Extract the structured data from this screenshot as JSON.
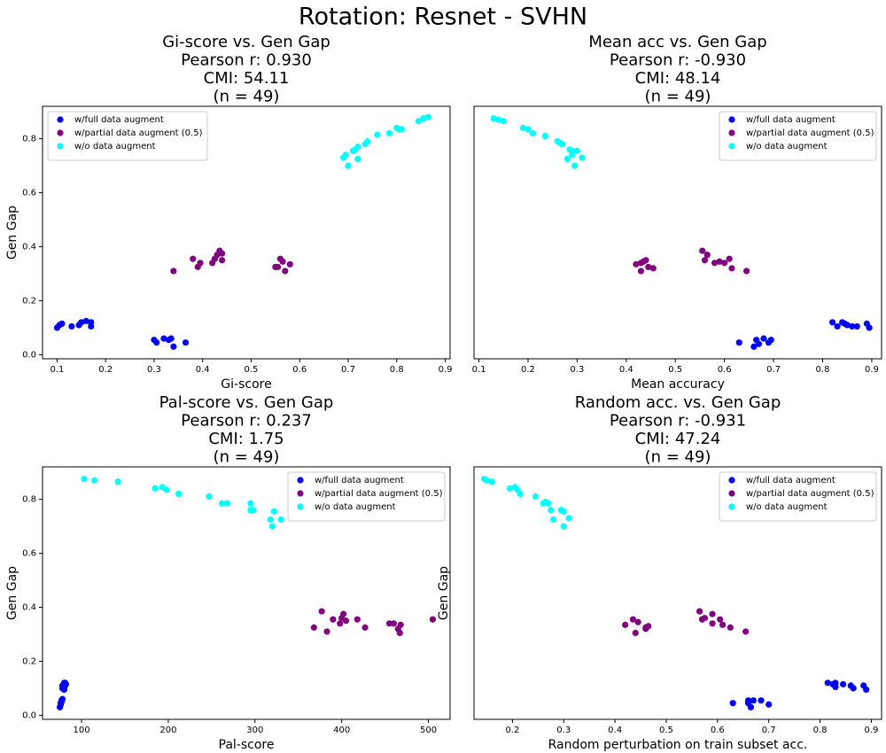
{
  "title": "Rotation: Resnet - SVHN",
  "chart_data": [
    {
      "type": "scatter",
      "title": [
        "Gi-score vs. Gen Gap",
        "Pearson r: 0.930",
        "CMI: 54.11",
        "(n = 49)"
      ],
      "xlabel": "Gi-score",
      "ylabel": "Gen Gap",
      "legend": "upper left",
      "xlim": [
        0.07,
        0.91
      ],
      "xticks": [
        0.1,
        0.2,
        0.3,
        0.4,
        0.5,
        0.6,
        0.7,
        0.8,
        0.9
      ],
      "ylim": [
        -0.015,
        0.92
      ],
      "yticks": [
        {
          "value": 0,
          "label": "0.0"
        },
        0.2,
        0.4,
        0.6,
        0.8
      ],
      "series": [
        {
          "name": "w/full data augment",
          "color": "#0000ff",
          "x": [
            0.1,
            0.105,
            0.11,
            0.13,
            0.145,
            0.15,
            0.16,
            0.17,
            0.17,
            0.3,
            0.305,
            0.32,
            0.33,
            0.335,
            0.34,
            0.365
          ],
          "values": [
            0.1,
            0.11,
            0.115,
            0.105,
            0.11,
            0.12,
            0.125,
            0.105,
            0.12,
            0.055,
            0.045,
            0.06,
            0.055,
            0.06,
            0.03,
            0.045
          ]
        },
        {
          "name": "w/partial data augment (0.5)",
          "color": "#800080",
          "x": [
            0.34,
            0.38,
            0.39,
            0.395,
            0.42,
            0.425,
            0.43,
            0.435,
            0.44,
            0.44,
            0.55,
            0.555,
            0.56,
            0.565,
            0.57,
            0.58
          ],
          "values": [
            0.31,
            0.355,
            0.325,
            0.34,
            0.34,
            0.355,
            0.37,
            0.385,
            0.375,
            0.35,
            0.325,
            0.325,
            0.355,
            0.345,
            0.31,
            0.335
          ]
        },
        {
          "name": "w/o data augment",
          "color": "#00ffff",
          "x": [
            0.69,
            0.7,
            0.71,
            0.715,
            0.72,
            0.735,
            0.74,
            0.76,
            0.785,
            0.8,
            0.805,
            0.81,
            0.845,
            0.855,
            0.865,
            0.72,
            0.695
          ],
          "values": [
            0.73,
            0.7,
            0.755,
            0.76,
            0.725,
            0.78,
            0.79,
            0.815,
            0.82,
            0.84,
            0.835,
            0.835,
            0.865,
            0.875,
            0.88,
            0.77,
            0.74
          ]
        }
      ]
    },
    {
      "type": "scatter",
      "title": [
        "Mean acc vs. Gen Gap",
        "Pearson r: -0.930",
        "CMI: 48.14",
        "(n = 49)"
      ],
      "xlabel": "Mean accuracy",
      "legend": "upper right",
      "xlim": [
        0.09,
        0.92
      ],
      "xticks": [
        0.1,
        0.2,
        0.3,
        0.4,
        0.5,
        0.6,
        0.7,
        0.8,
        0.9
      ],
      "ylim": [
        -0.015,
        0.92
      ],
      "series": [
        {
          "name": "w/full data augment",
          "color": "#0000ff",
          "x": [
            0.63,
            0.66,
            0.665,
            0.68,
            0.69,
            0.695,
            0.67,
            0.82,
            0.83,
            0.84,
            0.845,
            0.85,
            0.86,
            0.87,
            0.89,
            0.895
          ],
          "values": [
            0.045,
            0.03,
            0.055,
            0.06,
            0.045,
            0.055,
            0.04,
            0.12,
            0.105,
            0.12,
            0.115,
            0.11,
            0.105,
            0.105,
            0.115,
            0.1
          ]
        },
        {
          "name": "w/partial data augment (0.5)",
          "color": "#800080",
          "x": [
            0.42,
            0.43,
            0.435,
            0.44,
            0.445,
            0.455,
            0.43,
            0.555,
            0.56,
            0.565,
            0.58,
            0.59,
            0.6,
            0.61,
            0.615,
            0.645
          ],
          "values": [
            0.335,
            0.31,
            0.345,
            0.35,
            0.325,
            0.32,
            0.34,
            0.385,
            0.35,
            0.37,
            0.34,
            0.345,
            0.34,
            0.355,
            0.32,
            0.31
          ]
        },
        {
          "name": "w/o data augment",
          "color": "#00ffff",
          "x": [
            0.13,
            0.14,
            0.15,
            0.19,
            0.2,
            0.21,
            0.235,
            0.26,
            0.265,
            0.27,
            0.28,
            0.285,
            0.29,
            0.295,
            0.3,
            0.31,
            0.29
          ],
          "values": [
            0.875,
            0.87,
            0.865,
            0.84,
            0.835,
            0.82,
            0.81,
            0.79,
            0.785,
            0.78,
            0.725,
            0.76,
            0.755,
            0.7,
            0.755,
            0.73,
            0.74
          ]
        }
      ]
    },
    {
      "type": "scatter",
      "title": [
        "Pal-score vs. Gen Gap",
        "Pearson r: 0.237",
        "CMI: 1.75",
        "(n = 49)"
      ],
      "xlabel": "Pal-score",
      "ylabel": "Gen Gap",
      "legend": "upper right",
      "xlim": [
        55,
        525
      ],
      "xticks": [
        100,
        200,
        300,
        400,
        500
      ],
      "ylim": [
        -0.015,
        0.92
      ],
      "yticks": [
        {
          "value": 0,
          "label": "0.0"
        },
        0.2,
        0.4,
        0.6,
        0.8
      ],
      "series": [
        {
          "name": "w/full data augment",
          "color": "#0000ff",
          "x": [
            75,
            76,
            77,
            78,
            78,
            79,
            80,
            80,
            81,
            82,
            76,
            77,
            79,
            80,
            81,
            78
          ],
          "values": [
            0.03,
            0.04,
            0.05,
            0.06,
            0.1,
            0.11,
            0.12,
            0.1,
            0.11,
            0.115,
            0.045,
            0.055,
            0.105,
            0.095,
            0.12,
            0.11
          ]
        },
        {
          "name": "w/partial data augment (0.5)",
          "color": "#800080",
          "x": [
            368,
            377,
            383,
            390,
            398,
            402,
            405,
            418,
            427,
            455,
            460,
            465,
            467,
            468,
            505,
            400
          ],
          "values": [
            0.325,
            0.385,
            0.31,
            0.355,
            0.34,
            0.375,
            0.35,
            0.355,
            0.325,
            0.34,
            0.34,
            0.32,
            0.305,
            0.335,
            0.355,
            0.36
          ]
        },
        {
          "name": "w/o data augment",
          "color": "#00ffff",
          "x": [
            103,
            115,
            142,
            185,
            193,
            198,
            212,
            247,
            262,
            268,
            295,
            298,
            318,
            320,
            322,
            330,
            295
          ],
          "values": [
            0.875,
            0.87,
            0.865,
            0.84,
            0.845,
            0.835,
            0.82,
            0.81,
            0.785,
            0.785,
            0.76,
            0.76,
            0.725,
            0.7,
            0.755,
            0.725,
            0.785
          ]
        }
      ]
    },
    {
      "type": "scatter",
      "title": [
        "Random acc. vs. Gen Gap",
        "Pearson r: -0.931",
        "CMI: 47.24",
        "(n = 49)"
      ],
      "xlabel": "Random perturbation on train subset acc.",
      "ylabel": "Gen Gap",
      "legend": "upper right",
      "xlim": [
        0.125,
        0.92
      ],
      "xticks": [
        0.2,
        0.3,
        0.4,
        0.5,
        0.6,
        0.7,
        0.8,
        0.9
      ],
      "ylim": [
        -0.015,
        0.92
      ],
      "series": [
        {
          "name": "w/full data augment",
          "color": "#0000ff",
          "x": [
            0.63,
            0.66,
            0.665,
            0.67,
            0.685,
            0.7,
            0.66,
            0.815,
            0.825,
            0.83,
            0.845,
            0.86,
            0.865,
            0.885,
            0.89,
            0.83
          ],
          "values": [
            0.045,
            0.055,
            0.03,
            0.055,
            0.055,
            0.04,
            0.045,
            0.12,
            0.115,
            0.105,
            0.115,
            0.11,
            0.1,
            0.11,
            0.095,
            0.12
          ]
        },
        {
          "name": "w/partial data augment (0.5)",
          "color": "#800080",
          "x": [
            0.42,
            0.435,
            0.44,
            0.445,
            0.46,
            0.465,
            0.565,
            0.57,
            0.575,
            0.59,
            0.59,
            0.605,
            0.61,
            0.625,
            0.655,
            0.46
          ],
          "values": [
            0.335,
            0.355,
            0.305,
            0.345,
            0.325,
            0.33,
            0.385,
            0.355,
            0.36,
            0.375,
            0.34,
            0.355,
            0.335,
            0.325,
            0.31,
            0.32
          ]
        },
        {
          "name": "w/o data augment",
          "color": "#00ffff",
          "x": [
            0.145,
            0.15,
            0.16,
            0.195,
            0.205,
            0.21,
            0.215,
            0.245,
            0.26,
            0.265,
            0.27,
            0.275,
            0.28,
            0.295,
            0.3,
            0.31,
            0.3
          ],
          "values": [
            0.875,
            0.87,
            0.865,
            0.84,
            0.845,
            0.835,
            0.82,
            0.81,
            0.785,
            0.79,
            0.785,
            0.76,
            0.725,
            0.76,
            0.7,
            0.73,
            0.755
          ]
        }
      ]
    }
  ]
}
